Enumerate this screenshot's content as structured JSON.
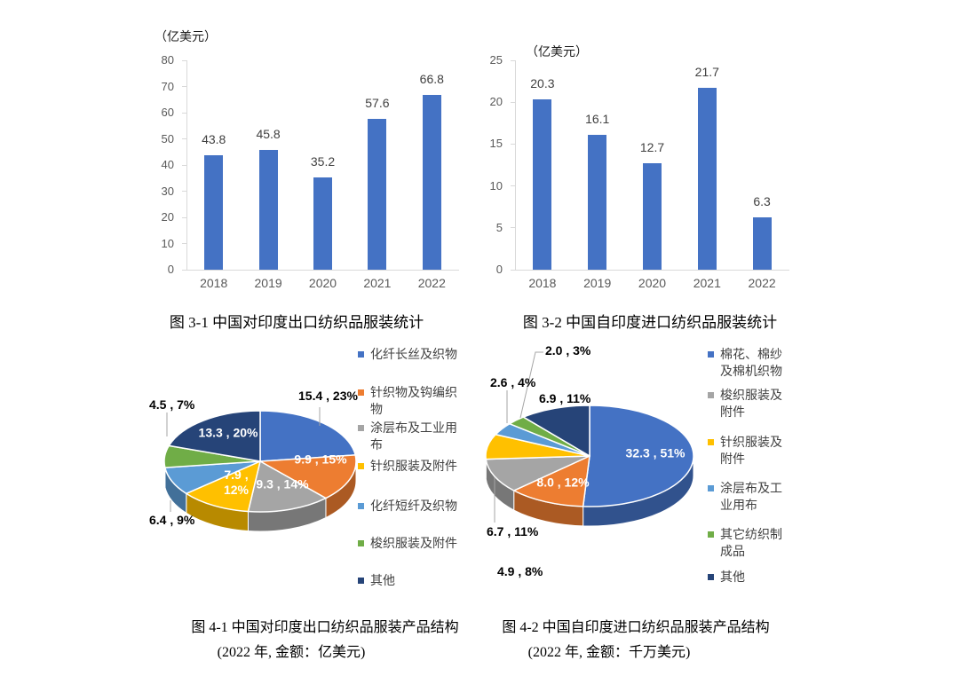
{
  "page": {
    "kind": "document-figure-grid",
    "background": "#ffffff"
  },
  "chart_data": [
    {
      "id": "export-bar",
      "type": "bar",
      "title": "图 3-1 中国对印度出口纺织品服装统计",
      "unit_label": "（亿美元）",
      "categories": [
        "2018",
        "2019",
        "2020",
        "2021",
        "2022"
      ],
      "values": [
        43.8,
        45.8,
        35.2,
        57.6,
        66.8
      ],
      "value_labels": [
        "43.8",
        "45.8",
        "35.2",
        "57.6",
        "66.8"
      ],
      "bar_color": "#4472C4",
      "ylim": [
        0,
        80
      ],
      "y_ticks": [
        0,
        10,
        20,
        30,
        40,
        50,
        60,
        70,
        80
      ],
      "grid": false,
      "legend_position": "none"
    },
    {
      "id": "import-bar",
      "type": "bar",
      "title": "图 3-2 中国自印度进口纺织品服装统计",
      "unit_label": "（亿美元）",
      "categories": [
        "2018",
        "2019",
        "2020",
        "2021",
        "2022"
      ],
      "values": [
        20.3,
        16.1,
        12.7,
        21.7,
        6.3
      ],
      "value_labels": [
        "20.3",
        "16.1",
        "12.7",
        "21.7",
        "6.3"
      ],
      "bar_color": "#4472C4",
      "ylim": [
        0,
        25
      ],
      "y_ticks": [
        0,
        5,
        10,
        15,
        20,
        25
      ],
      "grid": false,
      "legend_position": "none"
    },
    {
      "id": "export-pie",
      "type": "pie",
      "title": "图 4-1 中国对印度出口纺织品服装产品结构",
      "subtitle": "(2022 年, 金额：亿美元)",
      "year": "2022",
      "unit": "亿美元",
      "slices": [
        {
          "name": "化纤长丝及织物",
          "value": 15.4,
          "pct": 23,
          "label": "15.4 , 23%",
          "color": "#4472C4"
        },
        {
          "name": "针织物及钩编织物",
          "value": 9.9,
          "pct": 15,
          "label": "9.9 , 15%",
          "color": "#ED7D31"
        },
        {
          "name": "涂层布及工业用布",
          "value": 9.3,
          "pct": 14,
          "label": "9.3 , 14%",
          "color": "#A5A5A5"
        },
        {
          "name": "针织服装及附件",
          "value": 7.9,
          "pct": 12,
          "label": "7.9 , 12%",
          "color": "#FFC000"
        },
        {
          "name": "化纤短纤及织物",
          "value": 6.4,
          "pct": 9,
          "label": "6.4 , 9%",
          "color": "#5B9BD5"
        },
        {
          "name": "梭织服装及附件",
          "value": 4.5,
          "pct": 7,
          "label": "4.5 , 7%",
          "color": "#70AD47"
        },
        {
          "name": "其他",
          "value": 13.3,
          "pct": 20,
          "label": "13.3 , 20%",
          "color": "#264478"
        }
      ],
      "legend_position": "right",
      "legend": [
        {
          "label": "化纤长丝及织物",
          "color": "#4472C4"
        },
        {
          "label": "针织物及钩编织物",
          "color": "#ED7D31"
        },
        {
          "label": "涂层布及工业用布",
          "color": "#A5A5A5"
        },
        {
          "label": "针织服装及附件",
          "color": "#FFC000"
        },
        {
          "label": "化纤短纤及织物",
          "color": "#5B9BD5"
        },
        {
          "label": "梭织服装及附件",
          "color": "#70AD47"
        },
        {
          "label": "其他",
          "color": "#264478"
        }
      ]
    },
    {
      "id": "import-pie",
      "type": "pie",
      "title": "图 4-2 中国自印度进口纺织品服装产品结构",
      "subtitle": "(2022 年, 金额：千万美元)",
      "year": "2022",
      "unit": "千万美元",
      "slices": [
        {
          "name": "棉花、棉纱及棉机织物",
          "value": 32.3,
          "pct": 51,
          "label": "32.3 , 51%",
          "color": "#4472C4"
        },
        {
          "name": "",
          "value": 8.0,
          "pct": 12,
          "label": "8.0 , 12%",
          "color": "#ED7D31"
        },
        {
          "name": "梭织服装及附件",
          "value": 6.7,
          "pct": 11,
          "label": "6.7 , 11%",
          "color": "#A5A5A5"
        },
        {
          "name": "针织服装及附件",
          "value": 4.9,
          "pct": 8,
          "label": "4.9 , 8%",
          "color": "#FFC000"
        },
        {
          "name": "涂层布及工业用布",
          "value": 2.6,
          "pct": 4,
          "label": "2.6 , 4%",
          "color": "#5B9BD5"
        },
        {
          "name": "其它纺织制成品",
          "value": 2.0,
          "pct": 3,
          "label": "2.0 , 3%",
          "color": "#70AD47"
        },
        {
          "name": "其他",
          "value": 6.9,
          "pct": 11,
          "label": "6.9 , 11%",
          "color": "#264478"
        }
      ],
      "legend_position": "right",
      "legend": [
        {
          "label": "棉花、棉纱及棉机织物",
          "color": "#4472C4"
        },
        {
          "label": "梭织服装及附件",
          "color": "#A5A5A5"
        },
        {
          "label": "针织服装及附件",
          "color": "#FFC000"
        },
        {
          "label": "涂层布及工业用布",
          "color": "#5B9BD5"
        },
        {
          "label": "其它纺织制成品",
          "color": "#70AD47"
        },
        {
          "label": "其他",
          "color": "#264478"
        }
      ]
    }
  ]
}
